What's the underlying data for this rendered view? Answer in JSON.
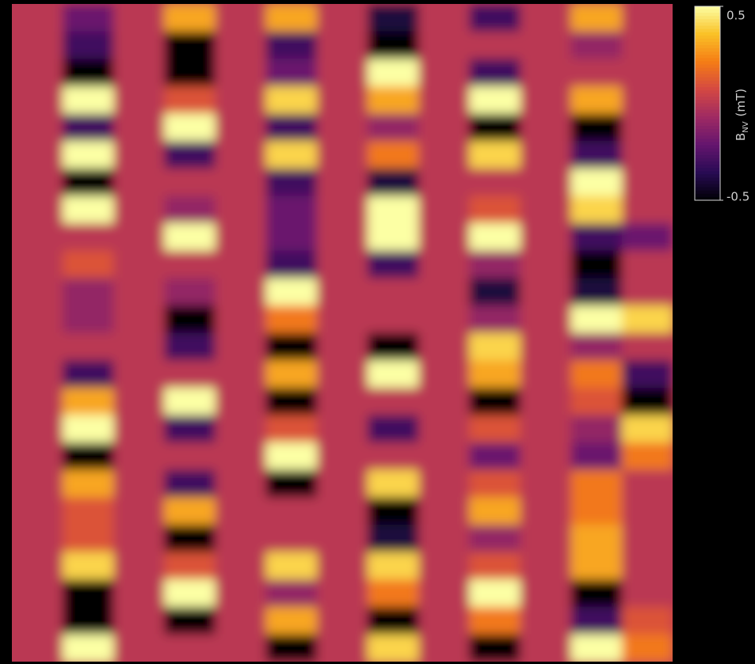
{
  "chart_data": {
    "type": "heatmap",
    "colormap": "inferno",
    "zlim": [
      -0.5,
      0.5
    ],
    "zticks": [
      0.5,
      -0.5
    ],
    "colorbar_label": {
      "symbol": "B",
      "subscript": "NV",
      "unit": "(mT)"
    },
    "z": [
      [
        0,
        -0.2,
        0,
        0.3,
        0,
        0.3,
        0,
        -0.4,
        0,
        -0.3,
        0,
        0.3,
        0
      ],
      [
        0,
        -0.3,
        0,
        -0.5,
        0,
        -0.3,
        0,
        -0.5,
        0,
        0,
        0,
        -0.1,
        0
      ],
      [
        0,
        -0.5,
        0,
        -0.5,
        0,
        -0.2,
        0,
        0.5,
        0,
        -0.3,
        0,
        0,
        0
      ],
      [
        0,
        0.5,
        0,
        0.1,
        0,
        0.4,
        0,
        0.3,
        0,
        0.5,
        0,
        0.3,
        0
      ],
      [
        0,
        -0.3,
        0,
        0.5,
        0,
        -0.3,
        0,
        -0.1,
        0,
        -0.5,
        0,
        -0.5,
        0
      ],
      [
        0,
        0.5,
        0,
        -0.3,
        0,
        0.4,
        0,
        0.2,
        0,
        0.4,
        0,
        -0.3,
        0
      ],
      [
        0,
        -0.5,
        0,
        0,
        0,
        -0.3,
        0,
        -0.4,
        0,
        0,
        0,
        0.5,
        0
      ],
      [
        0,
        0.5,
        0,
        -0.1,
        0,
        -0.2,
        0,
        0.5,
        0,
        0.1,
        0,
        0.4,
        0
      ],
      [
        0,
        0,
        0,
        0.5,
        0,
        -0.2,
        0,
        0.5,
        0,
        0.5,
        0,
        -0.3,
        -0.2
      ],
      [
        0,
        0.1,
        0,
        0,
        0,
        -0.3,
        0,
        -0.3,
        0,
        -0.1,
        0,
        -0.5,
        0
      ],
      [
        0,
        -0.1,
        0,
        -0.1,
        0,
        0.5,
        0,
        0,
        0,
        -0.4,
        0,
        -0.4,
        0
      ],
      [
        0,
        -0.1,
        0,
        -0.5,
        0,
        0.2,
        0,
        0,
        0,
        -0.1,
        0,
        0.5,
        0.4
      ],
      [
        0,
        0,
        0,
        -0.3,
        0,
        -0.5,
        0,
        -0.5,
        0,
        0.4,
        0,
        -0.1,
        0
      ],
      [
        0,
        -0.3,
        0,
        0,
        0,
        0.3,
        0,
        0.5,
        0,
        0.3,
        0,
        0.2,
        -0.3
      ],
      [
        0,
        0.3,
        0,
        0.5,
        0,
        -0.5,
        0,
        0,
        0,
        -0.5,
        0,
        0.1,
        -0.5
      ],
      [
        0,
        0.5,
        0,
        -0.3,
        0,
        0.1,
        0,
        -0.3,
        0,
        0.1,
        0,
        -0.1,
        0.4
      ],
      [
        0,
        -0.5,
        0,
        0,
        0,
        0.5,
        0,
        0,
        0,
        -0.2,
        0,
        -0.2,
        0.2
      ],
      [
        0,
        0.3,
        0,
        -0.3,
        0,
        -0.5,
        0,
        0.4,
        0,
        0.1,
        0,
        0.2,
        0
      ],
      [
        0,
        0.1,
        0,
        0.3,
        0,
        0,
        0,
        -0.5,
        0,
        0.3,
        0,
        0.2,
        0
      ],
      [
        0,
        0.1,
        0,
        -0.5,
        0,
        0,
        0,
        -0.4,
        0,
        -0.1,
        0,
        0.3,
        0
      ],
      [
        0,
        0.4,
        0,
        0.1,
        0,
        0.4,
        0,
        0.4,
        0,
        0.1,
        0,
        0.3,
        0
      ],
      [
        0,
        -0.5,
        0,
        0.5,
        0,
        -0.1,
        0,
        0.2,
        0,
        0.5,
        0,
        -0.5,
        0
      ],
      [
        0,
        -0.5,
        0,
        -0.5,
        0,
        0.3,
        0,
        -0.5,
        0,
        0.2,
        0,
        -0.3,
        0.1
      ],
      [
        0,
        0.5,
        0,
        0,
        0,
        -0.5,
        0,
        0.4,
        0,
        -0.5,
        0,
        0.5,
        0.2
      ]
    ]
  }
}
